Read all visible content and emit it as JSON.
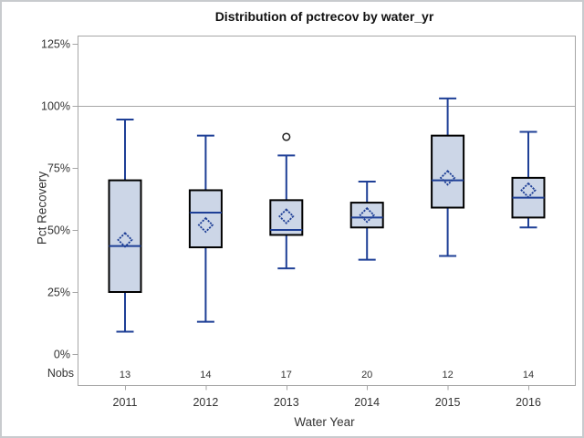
{
  "title": "Distribution of pctrecov by water_yr",
  "chart_data": {
    "type": "box",
    "title": "Distribution of pctrecov by water_yr",
    "xlabel": "Water Year",
    "ylabel": "Pct Recovery",
    "nobs_label": "Nobs",
    "categories": [
      "2011",
      "2012",
      "2013",
      "2014",
      "2015",
      "2016"
    ],
    "nobs": [
      "13",
      "14",
      "17",
      "20",
      "12",
      "14"
    ],
    "series": [
      {
        "category": "2011",
        "nobs": 13,
        "whisker_low": 9,
        "q1": 25,
        "median": 43.5,
        "q3": 70,
        "whisker_high": 94.5,
        "mean": 46,
        "outliers": []
      },
      {
        "category": "2012",
        "nobs": 14,
        "whisker_low": 13,
        "q1": 43,
        "median": 57,
        "q3": 66,
        "whisker_high": 88,
        "mean": 52,
        "outliers": []
      },
      {
        "category": "2013",
        "nobs": 17,
        "whisker_low": 34.5,
        "q1": 48,
        "median": 50,
        "q3": 62,
        "whisker_high": 80,
        "mean": 55.5,
        "outliers": [
          87.5
        ]
      },
      {
        "category": "2014",
        "nobs": 20,
        "whisker_low": 38,
        "q1": 51,
        "median": 55,
        "q3": 61,
        "whisker_high": 69.5,
        "mean": 56,
        "outliers": []
      },
      {
        "category": "2015",
        "nobs": 12,
        "whisker_low": 39.5,
        "q1": 59,
        "median": 70,
        "q3": 88,
        "whisker_high": 103,
        "mean": 71,
        "outliers": []
      },
      {
        "category": "2016",
        "nobs": 14,
        "whisker_low": 51,
        "q1": 55,
        "median": 63,
        "q3": 71,
        "whisker_high": 89.5,
        "mean": 66,
        "outliers": []
      }
    ],
    "y_ticks": [
      {
        "value": 0,
        "label": "0%"
      },
      {
        "value": 25,
        "label": "25%"
      },
      {
        "value": 50,
        "label": "50%"
      },
      {
        "value": 75,
        "label": "75%"
      },
      {
        "value": 100,
        "label": "100%"
      },
      {
        "value": 125,
        "label": "125%"
      }
    ],
    "ylim": [
      -12.5,
      128.3
    ],
    "reference_line": 100,
    "grid": "single-reference-line-at-100",
    "legend": "none",
    "colors": {
      "box_fill": "#ccd6e7",
      "box_border": "#000000",
      "whisker_median_mean": "#1e3f96",
      "reference_line": "#a6a6a6",
      "plot_border": "#a6a6a6",
      "outlier_stroke": "#222222",
      "text": "#333333"
    }
  }
}
